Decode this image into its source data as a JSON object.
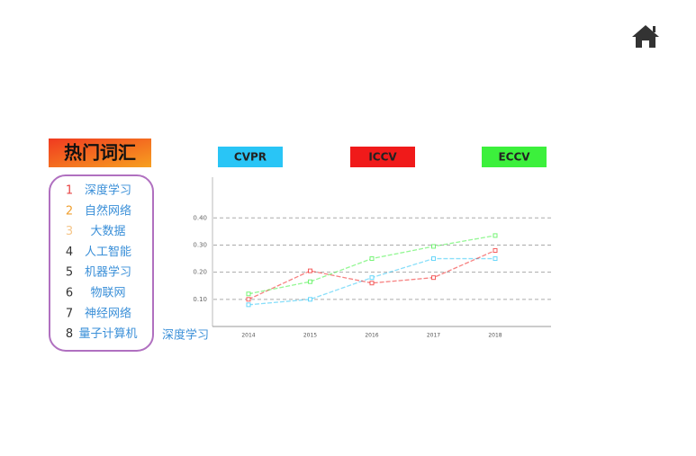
{
  "sidebar": {
    "title": "热门词汇",
    "items": [
      {
        "rank": 1,
        "label": "深度学习",
        "color": "#e84545"
      },
      {
        "rank": 2,
        "label": "自然网络",
        "color": "#f0a030"
      },
      {
        "rank": 3,
        "label": "大数据",
        "color": "#f5c68a"
      },
      {
        "rank": 4,
        "label": "人工智能",
        "color": "#333333"
      },
      {
        "rank": 5,
        "label": "机器学习",
        "color": "#333333"
      },
      {
        "rank": 6,
        "label": "物联网",
        "color": "#333333"
      },
      {
        "rank": 7,
        "label": "神经网络",
        "color": "#333333"
      },
      {
        "rank": 8,
        "label": "量子计算机",
        "color": "#333333"
      }
    ]
  },
  "chart_data": {
    "type": "line",
    "x_label": "深度学习",
    "categories": [
      "2014",
      "2015",
      "2016",
      "2017",
      "2018"
    ],
    "series": [
      {
        "name": "CVPR",
        "color": "#29c5f6",
        "values": [
          0.08,
          0.1,
          0.18,
          0.25,
          0.25
        ]
      },
      {
        "name": "ICCV",
        "color": "#f01a1a",
        "values": [
          0.1,
          0.205,
          0.16,
          0.18,
          0.28
        ]
      },
      {
        "name": "ECCV",
        "color": "#3cf03c",
        "values": [
          0.12,
          0.165,
          0.25,
          0.295,
          0.335
        ]
      }
    ],
    "ylim": [
      0,
      0.55
    ],
    "yticks": [
      {
        "value": 0.1,
        "label": "0.10"
      },
      {
        "value": 0.2,
        "label": "0.20"
      },
      {
        "value": 0.3,
        "label": "0.30"
      },
      {
        "value": 0.4,
        "label": "0.40"
      }
    ],
    "grid": true
  }
}
